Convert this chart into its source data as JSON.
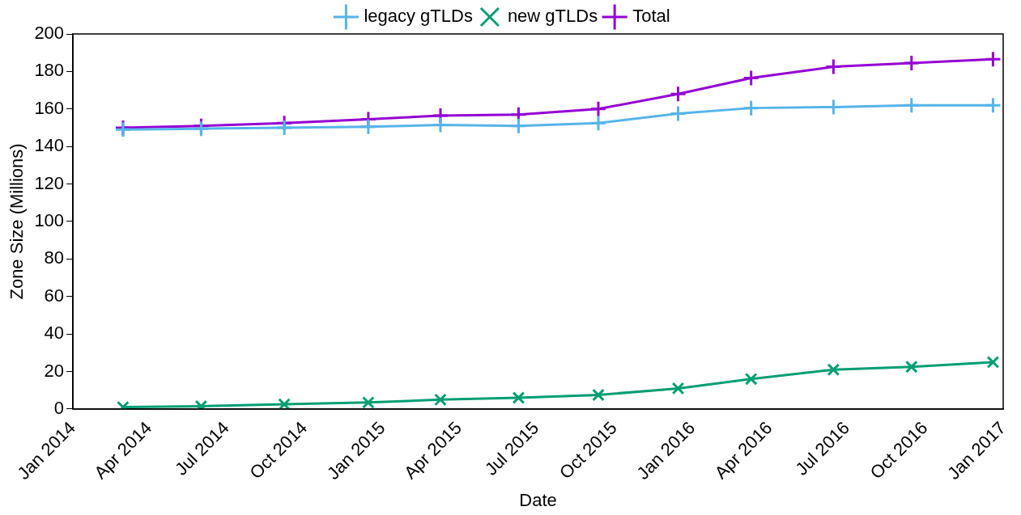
{
  "chart_data": {
    "type": "line",
    "xlabel": "Date",
    "ylabel": "Zone Size (Millions)",
    "x": [
      "2014-03-01",
      "2014-06-01",
      "2014-09-07",
      "2014-12-15",
      "2015-03-10",
      "2015-06-10",
      "2015-09-12",
      "2015-12-15",
      "2016-03-10",
      "2016-06-15",
      "2016-09-15",
      "2016-12-20"
    ],
    "series": [
      {
        "name": "Total",
        "color": "#9400d3",
        "marker": "cross",
        "values": [
          150,
          151,
          152.5,
          154.5,
          156.5,
          157,
          160,
          168,
          176.5,
          182.5,
          184.5,
          186.5
        ]
      },
      {
        "name": "new gTLDs",
        "color": "#009e73",
        "marker": "x",
        "values": [
          1,
          1.5,
          2.5,
          3.5,
          5,
          6,
          7.5,
          11,
          16,
          21,
          22.5,
          25
        ]
      },
      {
        "name": "legacy gTLDs",
        "color": "#56b4e9",
        "marker": "cross",
        "values": [
          149,
          149.5,
          150,
          150.5,
          151.5,
          151,
          152.5,
          157.5,
          160.5,
          161,
          162,
          162
        ]
      }
    ],
    "xlim": [
      "2014-01-01",
      "2017-01-01"
    ],
    "xticks": [
      {
        "value": "2014-01-01",
        "label": "Jan 2014"
      },
      {
        "value": "2014-04-01",
        "label": "Apr 2014"
      },
      {
        "value": "2014-07-01",
        "label": "Jul 2014"
      },
      {
        "value": "2014-10-01",
        "label": "Oct 2014"
      },
      {
        "value": "2015-01-01",
        "label": "Jan 2015"
      },
      {
        "value": "2015-04-01",
        "label": "Apr 2015"
      },
      {
        "value": "2015-07-01",
        "label": "Jul 2015"
      },
      {
        "value": "2015-10-01",
        "label": "Oct 2015"
      },
      {
        "value": "2016-01-01",
        "label": "Jan 2016"
      },
      {
        "value": "2016-04-01",
        "label": "Apr 2016"
      },
      {
        "value": "2016-07-01",
        "label": "Jul 2016"
      },
      {
        "value": "2016-10-01",
        "label": "Oct 2016"
      },
      {
        "value": "2017-01-01",
        "label": "Jan 2017"
      }
    ],
    "ylim": [
      0,
      200
    ],
    "yticks": [
      0,
      20,
      40,
      60,
      80,
      100,
      120,
      140,
      160,
      180,
      200
    ],
    "legend": "top",
    "grid": false,
    "line_style": "solid"
  }
}
